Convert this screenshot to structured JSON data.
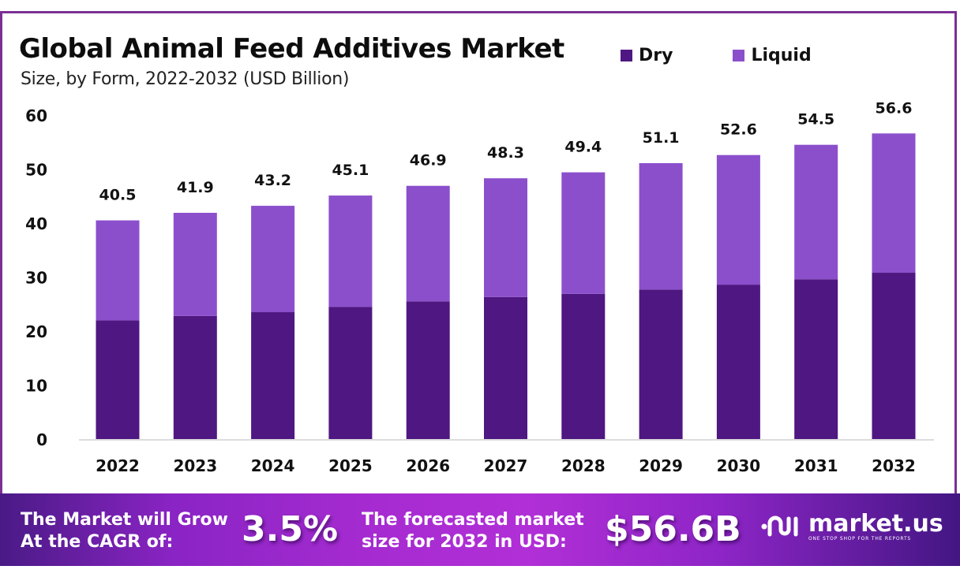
{
  "header": {
    "title": "Global Animal Feed Additives Market",
    "subtitle": "Size, by Form, 2022-2032 (USD Billion)"
  },
  "colors": {
    "dry": "#4f1782",
    "liquid": "#8b4fcc",
    "frame": "#7b2f95",
    "axis": "#d0d0d0"
  },
  "chart_data": {
    "type": "bar",
    "stacked": true,
    "title": "Global Animal Feed Additives Market",
    "subtitle": "Size, by Form, 2022-2032 (USD Billion)",
    "xlabel": "",
    "ylabel": "",
    "ylim": [
      0,
      60
    ],
    "yticks": [
      0,
      10,
      20,
      30,
      40,
      50,
      60
    ],
    "grid": false,
    "legend_position": "top-right",
    "categories": [
      "2022",
      "2023",
      "2024",
      "2025",
      "2026",
      "2027",
      "2028",
      "2029",
      "2030",
      "2031",
      "2032"
    ],
    "series": [
      {
        "name": "Dry",
        "values": [
          22.0,
          22.8,
          23.5,
          24.5,
          25.5,
          26.3,
          26.9,
          27.7,
          28.6,
          29.6,
          30.8
        ]
      },
      {
        "name": "Liquid",
        "values": [
          18.5,
          19.1,
          19.7,
          20.6,
          21.4,
          22.0,
          22.5,
          23.4,
          24.0,
          24.9,
          25.8
        ]
      }
    ],
    "totals": [
      40.5,
      41.9,
      43.2,
      45.1,
      46.9,
      48.3,
      49.4,
      51.1,
      52.6,
      54.5,
      56.6
    ],
    "total_labels": [
      "40.5",
      "41.9",
      "43.2",
      "45.1",
      "46.9",
      "48.3",
      "49.4",
      "51.1",
      "52.6",
      "54.5",
      "56.6"
    ]
  },
  "legend": [
    {
      "label": "Dry"
    },
    {
      "label": "Liquid"
    }
  ],
  "footer": {
    "cagr_text_line1": "The Market will Grow",
    "cagr_text_line2": "At the CAGR of:",
    "cagr_value": "3.5%",
    "forecast_text_line1": "The forecasted market",
    "forecast_text_line2": "size for 2032 in USD:",
    "forecast_value": "$56.6B",
    "brand_name": "market.us",
    "brand_tagline": "ONE STOP SHOP FOR THE REPORTS"
  }
}
